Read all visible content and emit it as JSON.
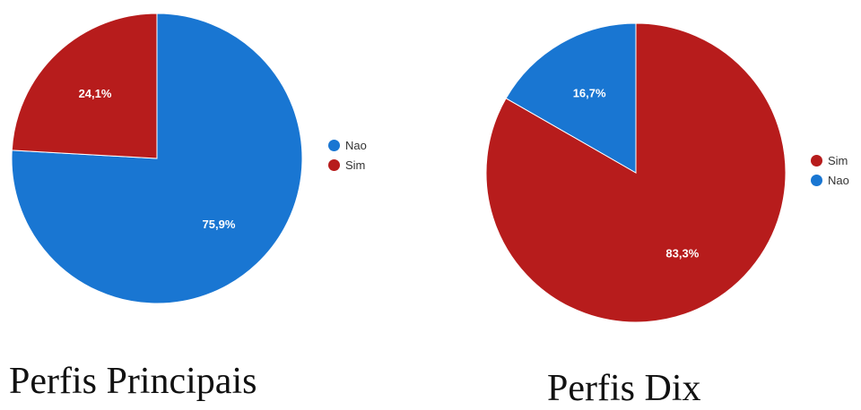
{
  "colors": {
    "blue": "#1976d2",
    "red": "#b71c1c"
  },
  "chart_data": [
    {
      "type": "pie",
      "title": "Perfis Principais",
      "slices": [
        {
          "label": "Nao",
          "value": 75.9,
          "display": "75,9%",
          "color": "#1976d2"
        },
        {
          "label": "Sim",
          "value": 24.1,
          "display": "24,1%",
          "color": "#b71c1c"
        }
      ],
      "legend": [
        "Nao",
        "Sim"
      ],
      "legend_placement": "right"
    },
    {
      "type": "pie",
      "title": "Perfis Dix",
      "slices": [
        {
          "label": "Sim",
          "value": 83.3,
          "display": "83,3%",
          "color": "#b71c1c"
        },
        {
          "label": "Nao",
          "value": 16.7,
          "display": "16,7%",
          "color": "#1976d2"
        }
      ],
      "legend": [
        "Sim",
        "Nao"
      ],
      "legend_placement": "right"
    }
  ]
}
